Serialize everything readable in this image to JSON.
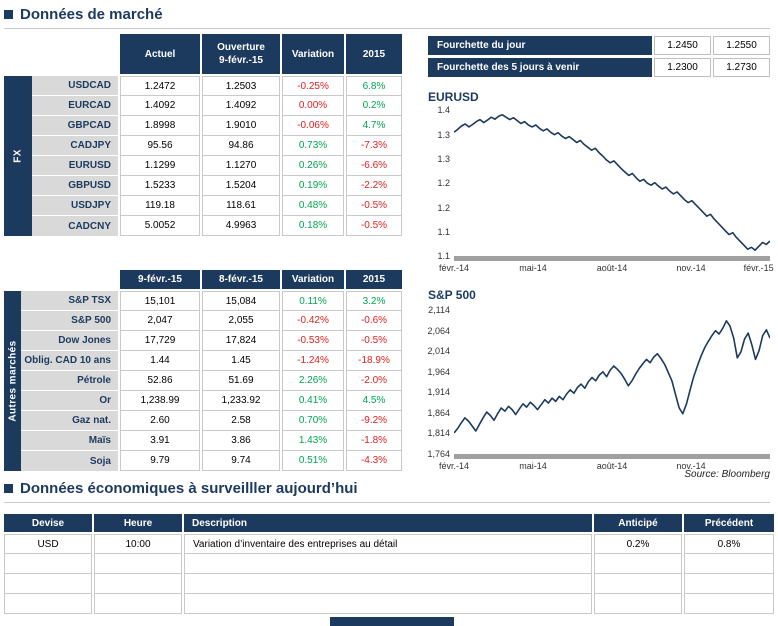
{
  "accent_color": "#1c3a5e",
  "chart_line_color": "#1b3a5c",
  "positive_color": "#00a651",
  "negative_color": "#e02020",
  "section1": {
    "title": "Données de marché"
  },
  "section2": {
    "title": "Données économiques à surveilller aujourd’hui"
  },
  "source_note": "Source: Bloomberg",
  "fx_table": {
    "side_label": "FX",
    "headers": {
      "c1": "Actuel",
      "c2_line1": "Ouverture",
      "c2_line2": "9-févr.-15",
      "c3": "Variation",
      "c4": "2015"
    },
    "rows": [
      {
        "label": "USDCAD",
        "actual": "1.2472",
        "open": "1.2503",
        "variation": "-0.25%",
        "ytd": "6.8%"
      },
      {
        "label": "EURCAD",
        "actual": "1.4092",
        "open": "1.4092",
        "variation": "0.00%",
        "ytd": "0.2%"
      },
      {
        "label": "GBPCAD",
        "actual": "1.8998",
        "open": "1.9010",
        "variation": "-0.06%",
        "ytd": "4.7%"
      },
      {
        "label": "CADJPY",
        "actual": "95.56",
        "open": "94.86",
        "variation": "0.73%",
        "ytd": "-7.3%"
      },
      {
        "label": "EURUSD",
        "actual": "1.1299",
        "open": "1.1270",
        "variation": "0.26%",
        "ytd": "-6.6%"
      },
      {
        "label": "GBPUSD",
        "actual": "1.5233",
        "open": "1.5204",
        "variation": "0.19%",
        "ytd": "-2.2%"
      },
      {
        "label": "USDJPY",
        "actual": "119.18",
        "open": "118.61",
        "variation": "0.48%",
        "ytd": "-0.5%"
      },
      {
        "label": "CADCNY",
        "actual": "5.0052",
        "open": "4.9963",
        "variation": "0.18%",
        "ytd": "-0.5%"
      }
    ]
  },
  "markets_table": {
    "side_label": "Autres marchés",
    "headers": {
      "c1": "9-févr.-15",
      "c2": "8-févr.-15",
      "c3": "Variation",
      "c4": "2015"
    },
    "rows": [
      {
        "label": "S&P TSX",
        "current": "15,101",
        "previous": "15,084",
        "variation": "0.11%",
        "ytd": "3.2%"
      },
      {
        "label": "S&P 500",
        "current": "2,047",
        "previous": "2,055",
        "variation": "-0.42%",
        "ytd": "-0.6%"
      },
      {
        "label": "Dow Jones",
        "current": "17,729",
        "previous": "17,824",
        "variation": "-0.53%",
        "ytd": "-0.5%"
      },
      {
        "label": "Oblig. CAD 10 ans",
        "current": "1.44",
        "previous": "1.45",
        "variation": "-1.24%",
        "ytd": "-18.9%"
      },
      {
        "label": "Pétrole",
        "current": "52.86",
        "previous": "51.69",
        "variation": "2.26%",
        "ytd": "-2.0%"
      },
      {
        "label": "Or",
        "current": "1,238.99",
        "previous": "1,233.92",
        "variation": "0.41%",
        "ytd": "4.5%"
      },
      {
        "label": "Gaz nat.",
        "current": "2.60",
        "previous": "2.58",
        "variation": "0.70%",
        "ytd": "-9.2%"
      },
      {
        "label": "Maïs",
        "current": "3.91",
        "previous": "3.86",
        "variation": "1.43%",
        "ytd": "-1.8%"
      },
      {
        "label": "Soja",
        "current": "9.79",
        "previous": "9.74",
        "variation": "0.51%",
        "ytd": "-4.3%"
      }
    ]
  },
  "ranges": [
    {
      "label": "Fourchette du jour",
      "low": "1.2450",
      "high": "1.2550"
    },
    {
      "label": "Fourchette des 5 jours à venir",
      "low": "1.2300",
      "high": "1.2730"
    }
  ],
  "chart_data": [
    {
      "type": "line",
      "title": "EURUSD",
      "ylim": [
        1.1,
        1.405
      ],
      "y_ticks": [
        {
          "value": 1.4,
          "label": "1.4"
        },
        {
          "value": 1.35,
          "label": "1.3"
        },
        {
          "value": 1.3,
          "label": "1.3"
        },
        {
          "value": 1.25,
          "label": "1.2"
        },
        {
          "value": 1.2,
          "label": "1.2"
        },
        {
          "value": 1.15,
          "label": "1.1"
        },
        {
          "value": 1.1,
          "label": "1.1"
        }
      ],
      "x_ticks": [
        {
          "pos": 0.0,
          "label": "févr.-14"
        },
        {
          "pos": 0.25,
          "label": "mai-14"
        },
        {
          "pos": 0.5,
          "label": "août-14"
        },
        {
          "pos": 0.75,
          "label": "nov.-14"
        },
        {
          "pos": 1.0,
          "label": "févr.-15"
        }
      ],
      "values": [
        1.355,
        1.361,
        1.368,
        1.372,
        1.366,
        1.371,
        1.377,
        1.381,
        1.375,
        1.38,
        1.386,
        1.382,
        1.388,
        1.391,
        1.386,
        1.381,
        1.385,
        1.379,
        1.373,
        1.377,
        1.37,
        1.366,
        1.37,
        1.363,
        1.358,
        1.362,
        1.355,
        1.35,
        1.354,
        1.347,
        1.342,
        1.346,
        1.34,
        1.334,
        1.338,
        1.33,
        1.324,
        1.318,
        1.322,
        1.313,
        1.306,
        1.298,
        1.292,
        1.296,
        1.288,
        1.28,
        1.273,
        1.266,
        1.27,
        1.261,
        1.254,
        1.258,
        1.25,
        1.246,
        1.251,
        1.244,
        1.238,
        1.242,
        1.234,
        1.228,
        1.232,
        1.224,
        1.216,
        1.21,
        1.214,
        1.206,
        1.198,
        1.19,
        1.182,
        1.186,
        1.176,
        1.168,
        1.16,
        1.152,
        1.144,
        1.148,
        1.138,
        1.13,
        1.122,
        1.114,
        1.118,
        1.112,
        1.12,
        1.128,
        1.124,
        1.131
      ]
    },
    {
      "type": "line",
      "title": "S&P 500",
      "ylim": [
        1764,
        2124
      ],
      "y_ticks": [
        {
          "value": 2114,
          "label": "2,114"
        },
        {
          "value": 2064,
          "label": "2,064"
        },
        {
          "value": 2014,
          "label": "2,014"
        },
        {
          "value": 1964,
          "label": "1,964"
        },
        {
          "value": 1914,
          "label": "1,914"
        },
        {
          "value": 1864,
          "label": "1,864"
        },
        {
          "value": 1814,
          "label": "1,814"
        },
        {
          "value": 1764,
          "label": "1,764"
        }
      ],
      "x_ticks": [
        {
          "pos": 0.0,
          "label": "févr.-14"
        },
        {
          "pos": 0.25,
          "label": "mai-14"
        },
        {
          "pos": 0.5,
          "label": "août-14"
        },
        {
          "pos": 0.75,
          "label": "nov.-14"
        }
      ],
      "values": [
        1815,
        1826,
        1840,
        1852,
        1844,
        1832,
        1820,
        1836,
        1852,
        1866,
        1858,
        1846,
        1862,
        1876,
        1868,
        1880,
        1872,
        1860,
        1874,
        1886,
        1878,
        1890,
        1882,
        1872,
        1884,
        1896,
        1888,
        1900,
        1892,
        1904,
        1896,
        1910,
        1920,
        1912,
        1926,
        1934,
        1924,
        1940,
        1950,
        1942,
        1956,
        1964,
        1952,
        1968,
        1978,
        1970,
        1960,
        1946,
        1930,
        1942,
        1958,
        1972,
        1984,
        1994,
        1986,
        2000,
        2008,
        1996,
        1982,
        1962,
        1942,
        1908,
        1876,
        1862,
        1886,
        1920,
        1952,
        1978,
        2002,
        2022,
        2038,
        2052,
        2064,
        2056,
        2070,
        2088,
        2075,
        2046,
        1998,
        2012,
        2044,
        2058,
        2030,
        1994,
        2016,
        2052,
        2066,
        2046
      ]
    }
  ],
  "econ_table": {
    "headers": [
      "Devise",
      "Heure",
      "Description",
      "Anticipé",
      "Précédent"
    ],
    "rows": [
      {
        "devise": "USD",
        "heure": "10:00",
        "description": "Variation d’inventaire des entreprises au détail",
        "anticipe": "0.2%",
        "precedent": "0.8%"
      },
      {
        "devise": "",
        "heure": "",
        "description": "",
        "anticipe": "",
        "precedent": ""
      },
      {
        "devise": "",
        "heure": "",
        "description": "",
        "anticipe": "",
        "precedent": ""
      },
      {
        "devise": "",
        "heure": "",
        "description": "",
        "anticipe": "",
        "precedent": ""
      }
    ]
  }
}
